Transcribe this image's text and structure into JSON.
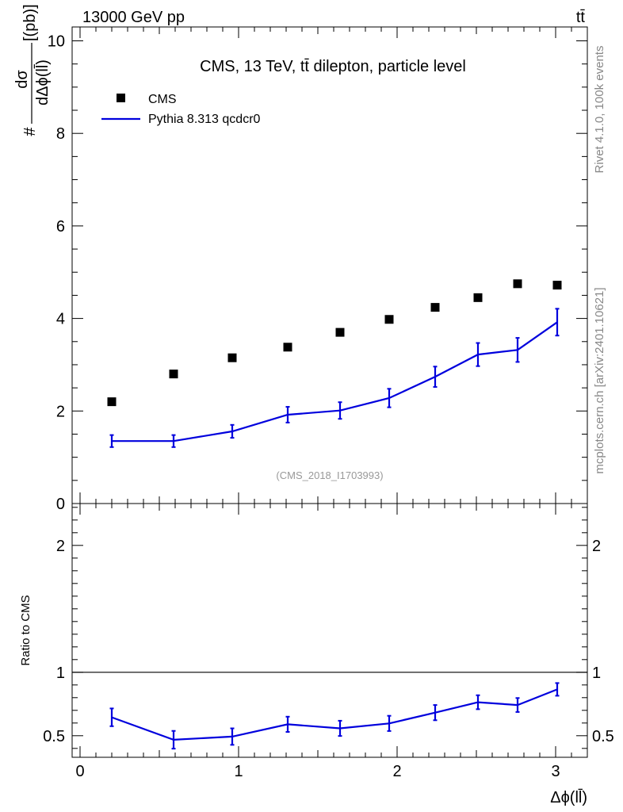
{
  "header": {
    "energy_label": "13000 GeV pp",
    "process_label": "tt̄"
  },
  "side": {
    "rivet_label": "Rivet 4.1.0,  100k events",
    "mcplots_label": "mcplots.cern.ch [arXiv:2401.10621]"
  },
  "colors": {
    "data": "#000000",
    "mc": "#0000dd",
    "analysis": "#999999"
  },
  "chart_data": [
    {
      "type": "scatter",
      "panel": "main",
      "title": "CMS, 13 TeV, tt̄ dilepton, particle level",
      "analysis_id": "(CMS_2018_I1703993)",
      "ylabel": "# dσ/dΔϕ(ll̄) [(pb)]",
      "ylabel_parts": {
        "prefix": "#",
        "numerator": "dσ",
        "denominator": "dΔϕ(ll̄)",
        "unit": "[(pb)]"
      },
      "xlim": [
        -0.05,
        3.2
      ],
      "ylim": [
        0,
        10.3
      ],
      "yticks": [
        0,
        2,
        4,
        6,
        8,
        10
      ],
      "legend": {
        "position": "top-left",
        "entries": [
          "CMS",
          "Pythia 8.313 qcdcr0"
        ]
      },
      "series": [
        {
          "name": "CMS",
          "style": "markers",
          "x": [
            0.2,
            0.59,
            0.96,
            1.31,
            1.64,
            1.95,
            2.24,
            2.51,
            2.76,
            3.01
          ],
          "values": [
            2.2,
            2.8,
            3.15,
            3.38,
            3.7,
            3.98,
            4.24,
            4.45,
            4.75,
            4.72
          ]
        },
        {
          "name": "Pythia 8.313 qcdcr0",
          "style": "line",
          "x": [
            0.2,
            0.59,
            0.96,
            1.31,
            1.64,
            1.95,
            2.24,
            2.51,
            2.76,
            3.01
          ],
          "values": [
            1.35,
            1.35,
            1.56,
            1.92,
            2.01,
            2.28,
            2.74,
            3.22,
            3.32,
            3.92
          ],
          "errors": [
            0.13,
            0.13,
            0.14,
            0.17,
            0.18,
            0.2,
            0.22,
            0.25,
            0.26,
            0.29
          ]
        }
      ]
    },
    {
      "type": "line",
      "panel": "ratio",
      "ylabel": "Ratio to CMS",
      "xlabel": "Δϕ(ll̄)",
      "xlim": [
        -0.05,
        3.2
      ],
      "ylim": [
        0.33,
        2.33
      ],
      "xticks": [
        0,
        1,
        2,
        3
      ],
      "yticks": [
        0.5,
        1,
        2
      ],
      "reference_line": 1,
      "series": [
        {
          "name": "Pythia 8.313 qcdcr0",
          "x": [
            0.2,
            0.59,
            0.96,
            1.31,
            1.64,
            1.95,
            2.24,
            2.51,
            2.76,
            3.01
          ],
          "values": [
            0.645,
            0.468,
            0.493,
            0.59,
            0.558,
            0.597,
            0.682,
            0.764,
            0.742,
            0.865
          ],
          "errors": [
            0.07,
            0.07,
            0.065,
            0.06,
            0.06,
            0.06,
            0.06,
            0.055,
            0.055,
            0.05
          ]
        }
      ]
    }
  ]
}
